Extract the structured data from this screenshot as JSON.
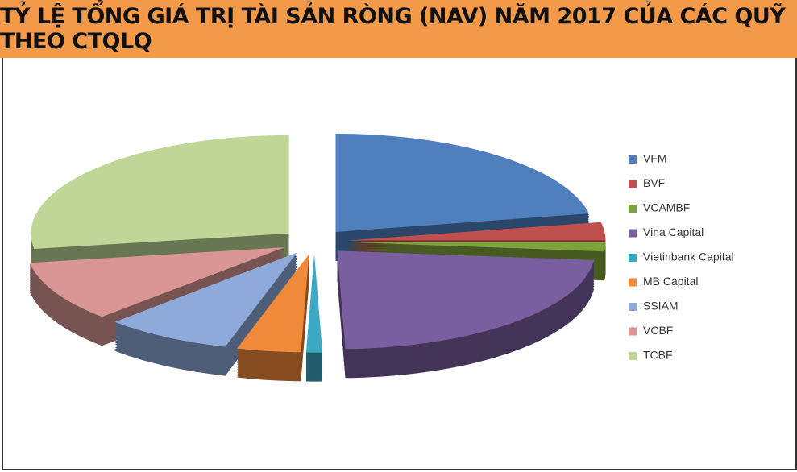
{
  "chart_data": {
    "type": "pie",
    "title": "TỶ LỆ TỔNG GIÁ TRỊ TÀI SẢN RÒNG (NAV) NĂM 2017 CỦA CÁC QUỸ THEO CTQLQ",
    "categories": [
      "VFM",
      "BVF",
      "VCAMBF",
      "Vina Capital",
      "Vietinbank Capital",
      "MB Capital",
      "SSIAM",
      "VCBF",
      "TCBF"
    ],
    "values": [
      22,
      3,
      1.5,
      23,
      1,
      4,
      8,
      10,
      27.5
    ],
    "colors": [
      "#4f7fbd",
      "#c0504d",
      "#7fa33c",
      "#7a5fa0",
      "#3ea9c4",
      "#f08a3a",
      "#8eaadb",
      "#d99694",
      "#bfd697"
    ],
    "legend": "right"
  }
}
